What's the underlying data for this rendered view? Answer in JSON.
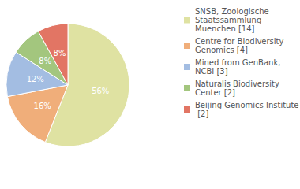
{
  "chart_data": {
    "type": "pie",
    "categories": [
      "SNSB, Zoologische Staatssammlung Muenchen [14]",
      "Centre for Biodiversity Genomics [4]",
      "Mined from GenBank, NCBI [3]",
      "Naturalis Biodiversity Center [2]",
      "Beijing Genomics Institute [2]"
    ],
    "values": [
      56,
      16,
      12,
      8,
      8
    ],
    "value_labels": [
      "56%",
      "16%",
      "12%",
      "8%",
      "8%"
    ],
    "colors": [
      "#dfe2a2",
      "#f0ae7a",
      "#a3bde2",
      "#a3c67e",
      "#e27564"
    ],
    "data_labels": true,
    "legend": "right"
  }
}
